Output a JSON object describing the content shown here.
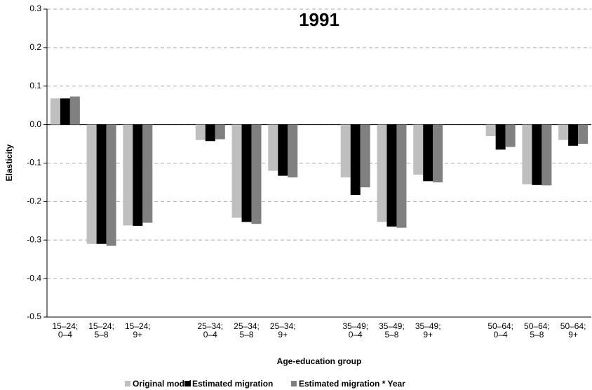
{
  "chart_data": {
    "type": "bar",
    "title": "1991",
    "x_label": "Age-education group",
    "y_label": "Elasticity",
    "categories": [
      [
        "15–24;",
        "0–4"
      ],
      [
        "15–24;",
        "5–8"
      ],
      [
        "15–24;",
        "9+"
      ],
      null,
      [
        "25–34;",
        "0–4"
      ],
      [
        "25–34;",
        "5–8"
      ],
      [
        "25–34;",
        "9+"
      ],
      null,
      [
        "35–49;",
        "0–4"
      ],
      [
        "35–49;",
        "5–8"
      ],
      [
        "35–49;",
        "9+"
      ],
      null,
      [
        "50–64;",
        "0–4"
      ],
      [
        "50–64;",
        "5–8"
      ],
      [
        "50–64;",
        "9+"
      ]
    ],
    "series": [
      {
        "name": "Original model",
        "color": "#bfbfbf",
        "values": [
          0.068,
          -0.31,
          -0.262,
          null,
          -0.04,
          -0.242,
          -0.12,
          null,
          -0.137,
          -0.253,
          -0.13,
          null,
          -0.03,
          -0.155,
          -0.04
        ]
      },
      {
        "name": "Estimated migration",
        "color": "#000000",
        "values": [
          0.068,
          -0.31,
          -0.263,
          null,
          -0.043,
          -0.253,
          -0.133,
          null,
          -0.183,
          -0.265,
          -0.147,
          null,
          -0.065,
          -0.157,
          -0.055
        ]
      },
      {
        "name": "Estimated migration * Year",
        "color": "#808080",
        "values": [
          0.073,
          -0.315,
          -0.255,
          null,
          -0.038,
          -0.258,
          -0.137,
          null,
          -0.163,
          -0.268,
          -0.15,
          null,
          -0.058,
          -0.158,
          -0.05
        ]
      }
    ],
    "ylim": [
      -0.5,
      0.3
    ],
    "yticks": [
      -0.5,
      -0.4,
      -0.3,
      -0.2,
      -0.1,
      {
        "value": 0,
        "label": "0.0"
      },
      0.1,
      0.2,
      0.3
    ],
    "grid": true,
    "legend": "bottom"
  }
}
